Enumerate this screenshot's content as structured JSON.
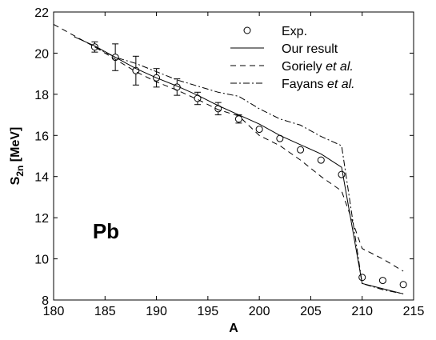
{
  "chart_data": {
    "type": "line",
    "xlabel": "A",
    "ylabel_main": "S",
    "ylabel_sub": "2n",
    "ylabel_unit": " [MeV]",
    "xlim": [
      180,
      215
    ],
    "ylim": [
      8,
      22
    ],
    "xticks": [
      180,
      185,
      190,
      195,
      200,
      205,
      210,
      215
    ],
    "yticks": [
      8,
      10,
      12,
      14,
      16,
      18,
      20,
      22
    ],
    "grid": false,
    "legend_position": "top-right",
    "annotation": "Pb",
    "series": [
      {
        "name": "Exp.",
        "style": "markers-errorbars",
        "points": [
          {
            "x": 184,
            "y": 20.3,
            "err": 0.25
          },
          {
            "x": 186,
            "y": 19.8,
            "err": 0.65
          },
          {
            "x": 188,
            "y": 19.15,
            "err": 0.7
          },
          {
            "x": 190,
            "y": 18.8,
            "err": 0.45
          },
          {
            "x": 192,
            "y": 18.35,
            "err": 0.4
          },
          {
            "x": 194,
            "y": 17.8,
            "err": 0.3
          },
          {
            "x": 196,
            "y": 17.3,
            "err": 0.3
          },
          {
            "x": 198,
            "y": 16.8,
            "err": 0.2
          },
          {
            "x": 200,
            "y": 16.3,
            "err": 0
          },
          {
            "x": 202,
            "y": 15.85,
            "err": 0
          },
          {
            "x": 204,
            "y": 15.3,
            "err": 0
          },
          {
            "x": 206,
            "y": 14.8,
            "err": 0
          },
          {
            "x": 208,
            "y": 14.1,
            "err": 0
          },
          {
            "x": 210,
            "y": 9.1,
            "err": 0
          },
          {
            "x": 212,
            "y": 8.95,
            "err": 0
          },
          {
            "x": 214,
            "y": 8.75,
            "err": 0
          }
        ]
      },
      {
        "name": "Our result",
        "style": "solid",
        "x": [
          182,
          184,
          186,
          188,
          190,
          192,
          194,
          196,
          198,
          200,
          202,
          204,
          206,
          208,
          210,
          212,
          214
        ],
        "y": [
          20.8,
          20.35,
          19.8,
          19.25,
          18.8,
          18.4,
          17.95,
          17.45,
          17.0,
          16.55,
          16.0,
          15.55,
          15.1,
          14.45,
          8.8,
          8.55,
          8.3
        ]
      },
      {
        "name": "Goriely",
        "name_suffix": "et al.",
        "style": "dashed",
        "x": [
          180,
          182,
          184,
          186,
          188,
          190,
          192,
          194,
          196,
          198,
          200,
          202,
          204,
          206,
          208,
          210,
          212,
          214
        ],
        "y": [
          21.4,
          20.85,
          20.3,
          19.7,
          19.1,
          18.6,
          18.2,
          17.75,
          17.25,
          16.95,
          16.0,
          15.5,
          14.8,
          14.0,
          13.3,
          10.5,
          10.0,
          9.4
        ]
      },
      {
        "name": "Fayans",
        "name_suffix": "et al.",
        "style": "dashdot",
        "x": [
          184,
          186,
          188,
          190,
          192,
          194,
          196,
          198,
          200,
          202,
          204,
          206,
          208,
          210,
          212,
          214
        ],
        "y": [
          20.3,
          19.8,
          19.5,
          19.1,
          18.7,
          18.4,
          18.1,
          17.9,
          17.3,
          16.8,
          16.5,
          15.95,
          15.5,
          8.8,
          8.5,
          8.3
        ]
      }
    ]
  }
}
